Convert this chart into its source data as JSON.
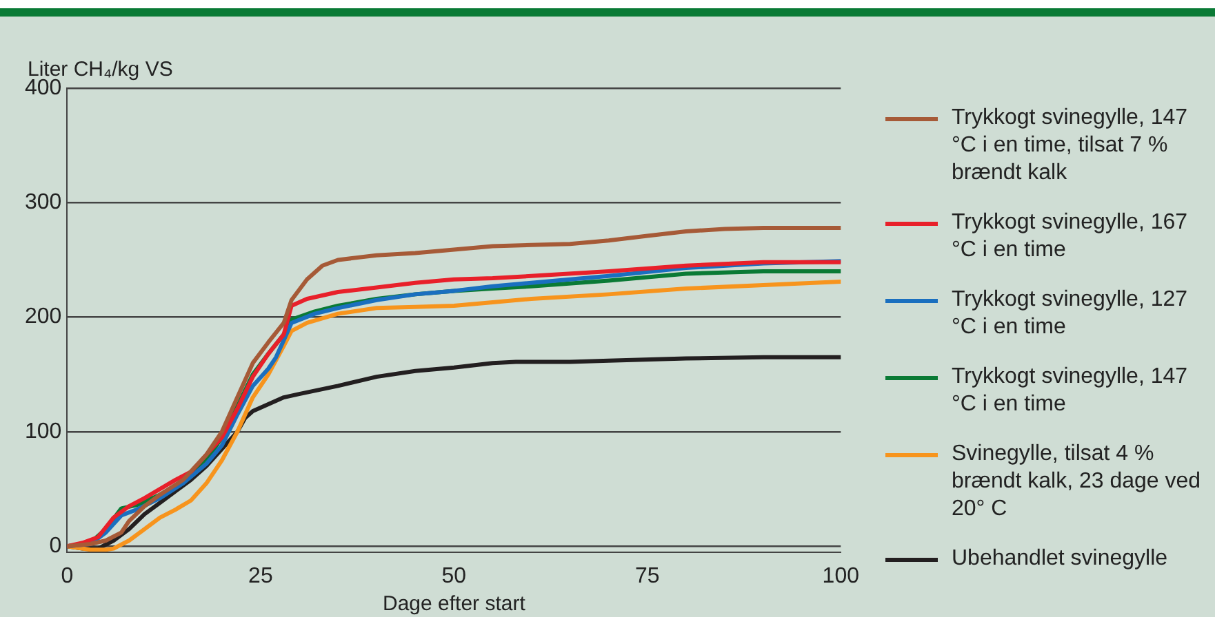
{
  "chart_data": {
    "type": "line",
    "ylabel": "Liter CH₄/kg VS",
    "xlabel": "Dage efter start",
    "xlim": [
      0,
      100
    ],
    "xticks": [
      0,
      25,
      50,
      75,
      100
    ],
    "ylim": [
      -5,
      400
    ],
    "yticks": [
      0,
      100,
      200,
      300,
      400
    ],
    "grid": "y",
    "legend": "right",
    "marker": "none",
    "line_style": "solid",
    "series": [
      {
        "name": "Trykkogt svinegylle, 147 °C i en time, tilsat 7 % brændt kalk",
        "color": "#a65a37",
        "x": [
          0,
          3,
          5,
          7,
          8,
          10,
          12,
          15,
          18,
          20,
          22,
          24,
          26,
          28,
          29,
          31,
          33,
          35,
          40,
          45,
          50,
          55,
          60,
          65,
          70,
          75,
          80,
          85,
          90,
          100
        ],
        "values": [
          0,
          2,
          5,
          12,
          22,
          35,
          45,
          58,
          80,
          100,
          130,
          160,
          178,
          195,
          215,
          233,
          245,
          250,
          254,
          256,
          259,
          262,
          263,
          264,
          267,
          271,
          275,
          277,
          278,
          278
        ]
      },
      {
        "name": "Trykkogt svinegylle, 167 °C i en time",
        "color": "#e8202a",
        "x": [
          0,
          2,
          4,
          6,
          8,
          10,
          12,
          14,
          16,
          18,
          20,
          22,
          24,
          26,
          28,
          29,
          31,
          35,
          40,
          45,
          50,
          55,
          60,
          70,
          80,
          90,
          100
        ],
        "values": [
          0,
          3,
          8,
          25,
          35,
          42,
          50,
          58,
          65,
          80,
          95,
          120,
          148,
          168,
          185,
          210,
          216,
          222,
          226,
          230,
          233,
          234,
          236,
          240,
          245,
          248,
          248
        ]
      },
      {
        "name": "Trykkogt svinegylle, 127 °C i en time",
        "color": "#1a6fbf",
        "x": [
          0,
          3,
          5,
          7,
          9,
          12,
          15,
          18,
          20,
          22,
          24,
          26,
          27,
          28,
          29,
          32,
          35,
          40,
          45,
          50,
          55,
          60,
          70,
          80,
          90,
          100
        ],
        "values": [
          0,
          2,
          12,
          27,
          32,
          42,
          55,
          72,
          88,
          115,
          140,
          155,
          165,
          180,
          195,
          203,
          208,
          215,
          220,
          223,
          227,
          230,
          236,
          243,
          247,
          249
        ]
      },
      {
        "name": "Trykkogt svinegylle, 147 °C i en time",
        "color": "#0a7a35",
        "x": [
          0,
          3,
          5,
          7,
          9,
          12,
          15,
          18,
          20,
          22,
          24,
          26,
          28,
          29,
          32,
          35,
          40,
          45,
          50,
          55,
          60,
          70,
          80,
          90,
          100
        ],
        "values": [
          0,
          3,
          15,
          33,
          36,
          45,
          57,
          75,
          95,
          122,
          150,
          168,
          185,
          198,
          205,
          210,
          216,
          220,
          223,
          225,
          227,
          232,
          238,
          240,
          240
        ]
      },
      {
        "name": "Svinegylle, tilsat 4 % brændt kalk, 23 dage ved 20° C",
        "color": "#f7941d",
        "x": [
          0,
          3,
          5,
          6,
          8,
          10,
          12,
          14,
          16,
          18,
          20,
          22,
          24,
          26,
          28,
          29,
          31,
          35,
          40,
          45,
          50,
          55,
          60,
          70,
          80,
          90,
          100
        ],
        "values": [
          0,
          -3,
          -3,
          -2,
          5,
          15,
          25,
          32,
          40,
          55,
          75,
          100,
          130,
          150,
          175,
          188,
          195,
          203,
          208,
          209,
          210,
          213,
          216,
          220,
          225,
          228,
          231
        ]
      },
      {
        "name": "Ubehandlet svinegylle",
        "color": "#231f20",
        "x": [
          0,
          2,
          4,
          6,
          8,
          10,
          12,
          14,
          16,
          18,
          20,
          22,
          23,
          24,
          26,
          28,
          30,
          35,
          40,
          45,
          50,
          55,
          58,
          65,
          70,
          80,
          90,
          100
        ],
        "values": [
          0,
          -2,
          -2,
          5,
          15,
          28,
          38,
          48,
          58,
          70,
          85,
          100,
          112,
          118,
          124,
          130,
          133,
          140,
          148,
          153,
          156,
          160,
          161,
          161,
          162,
          164,
          165,
          165
        ]
      }
    ]
  }
}
